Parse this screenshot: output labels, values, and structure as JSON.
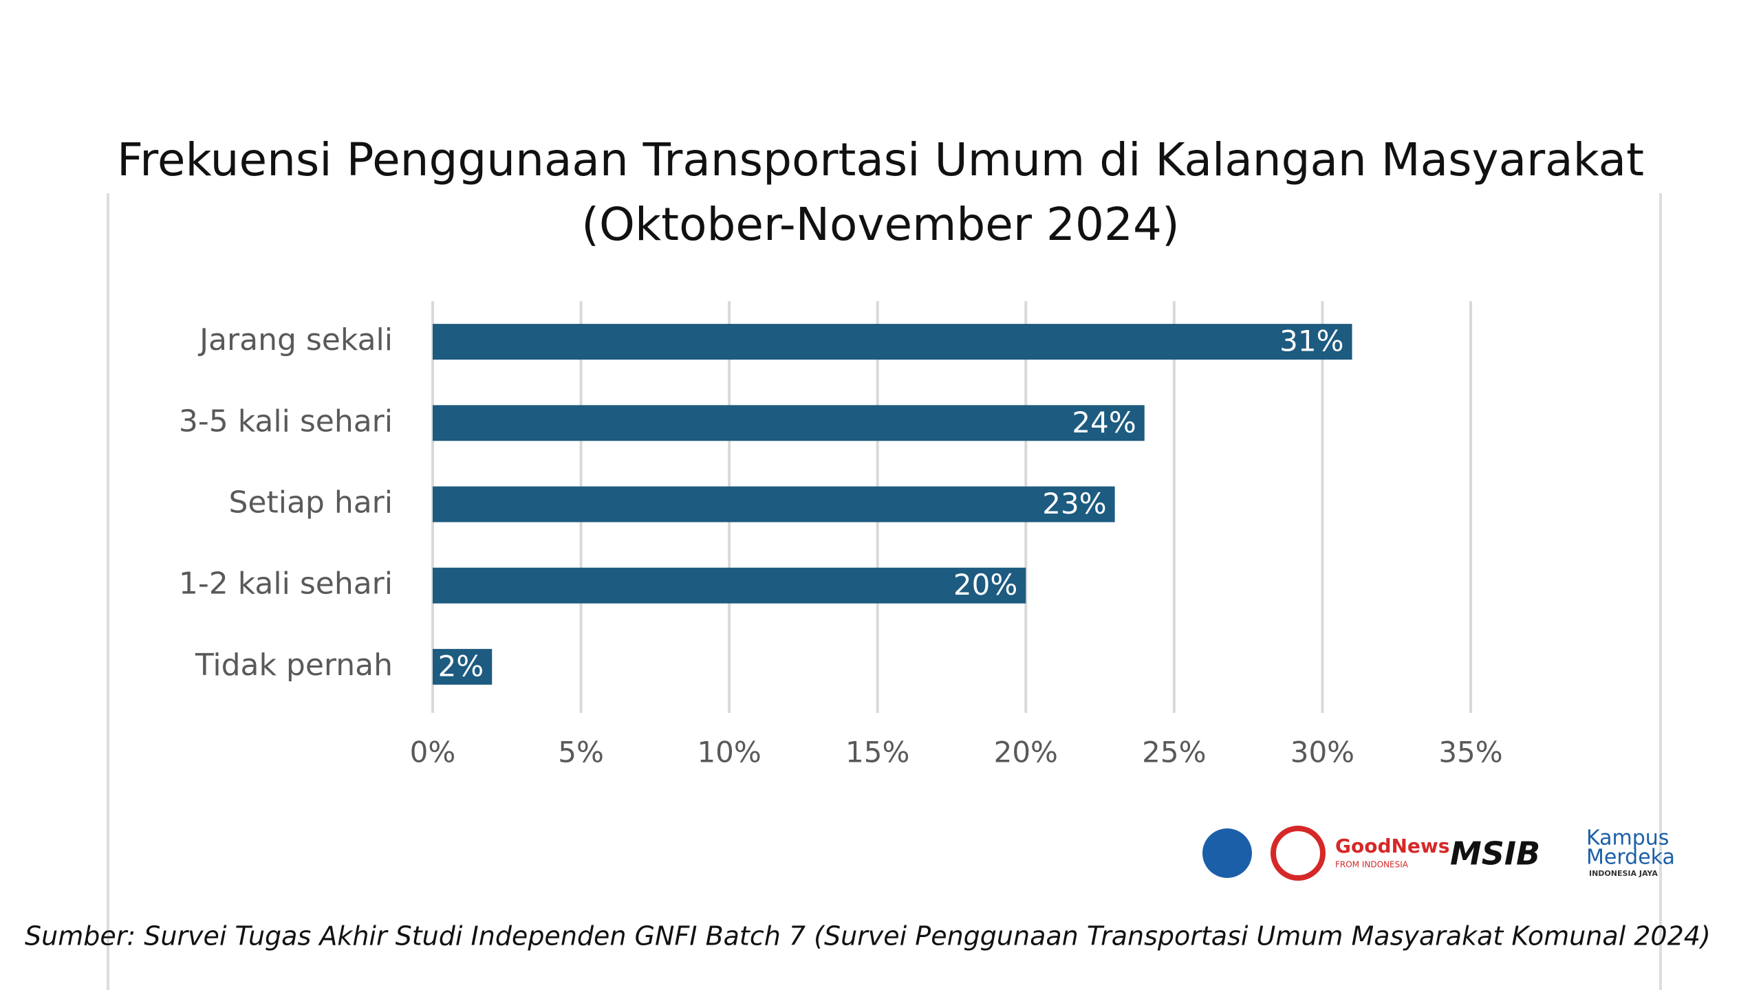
{
  "chart_data": {
    "type": "bar",
    "orientation": "horizontal",
    "title": "Frekuensi Penggunaan Transportasi Umum di Kalangan Masyarakat",
    "subtitle": "(Oktober-November 2024)",
    "categories": [
      "Jarang sekali",
      "3-5 kali sehari",
      "Setiap hari",
      "1-2 kali sehari",
      "Tidak pernah"
    ],
    "values": [
      31,
      24,
      23,
      20,
      2
    ],
    "value_labels": [
      "31%",
      "24%",
      "23%",
      "20%",
      "2%"
    ],
    "color": "#1d5b80",
    "xlim": [
      0,
      35
    ],
    "xticks": [
      {
        "value": 0,
        "label": "0%"
      },
      {
        "value": 5,
        "label": "5%"
      },
      {
        "value": 10,
        "label": "10%"
      },
      {
        "value": 15,
        "label": "15%"
      },
      {
        "value": 20,
        "label": "20%"
      },
      {
        "value": 25,
        "label": "25%"
      },
      {
        "value": 30,
        "label": "30%"
      },
      {
        "value": 35,
        "label": "35%"
      }
    ],
    "grid": true,
    "source": "Sumber: Survei Tugas Akhir Studi Independen GNFI Batch 7 (Survei Penggunaan Transportasi Umum Masyarakat Komunal 2024)",
    "logos": [
      "GoodNews",
      "FROM INDONESIA",
      "MSIB",
      "Kampus",
      "Merdeka",
      "INDONESIA JAYA"
    ]
  }
}
